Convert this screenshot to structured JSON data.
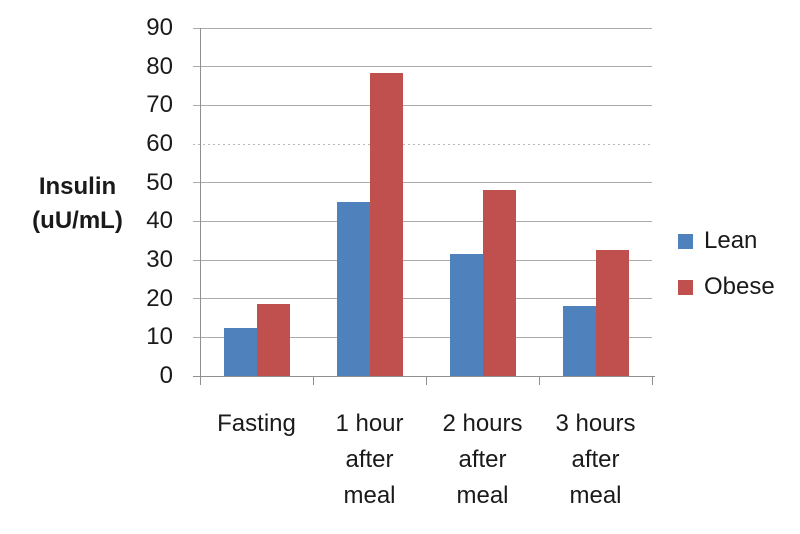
{
  "chart_data": {
    "type": "bar",
    "title": "",
    "ylabel": "Insulin (uU/mL)",
    "ylabel_lines": [
      "Insulin",
      "(uU/mL)"
    ],
    "categories": [
      "Fasting",
      "1 hour after meal",
      "2 hours after meal",
      "3 hours after meal"
    ],
    "category_lines": [
      [
        "Fasting"
      ],
      [
        "1 hour",
        "after",
        "meal"
      ],
      [
        "2 hours",
        "after",
        "meal"
      ],
      [
        "3 hours",
        "after",
        "meal"
      ]
    ],
    "series": [
      {
        "name": "Lean",
        "color": "#4F81BD",
        "values": [
          12.4,
          45,
          31.5,
          18
        ]
      },
      {
        "name": "Obese",
        "color": "#C0504D",
        "values": [
          18.6,
          78.5,
          48,
          32.5
        ]
      }
    ],
    "ylim": [
      0,
      90
    ],
    "yticks": [
      0,
      10,
      20,
      30,
      40,
      50,
      60,
      70,
      80,
      90
    ],
    "dotted_gridline_at": 60,
    "grid": true,
    "legend_position": "right",
    "legend": [
      "Lean",
      "Obese"
    ]
  },
  "colors": {
    "lean": "#4F81BD",
    "obese": "#C0504D",
    "gridline": "#ABABAB",
    "axis": "#8F8F8F",
    "text": "#1A1A1A",
    "background": "#FFFFFF"
  }
}
